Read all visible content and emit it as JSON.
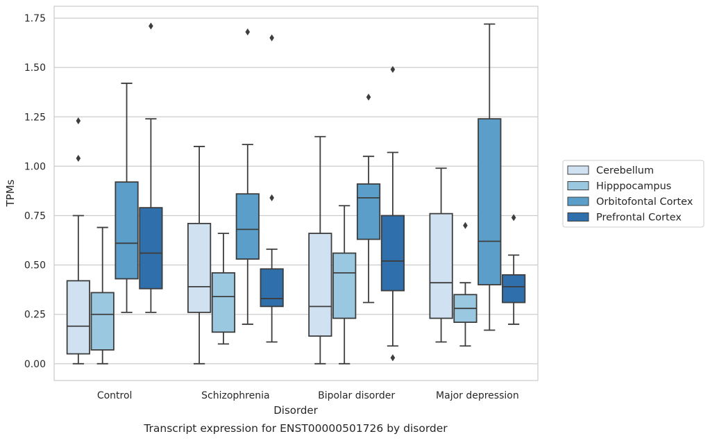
{
  "chart_data": {
    "type": "box",
    "title": "",
    "caption": "Transcript expression for ENST00000501726 by disorder",
    "xlabel": "Disorder",
    "ylabel": "TPMs",
    "ylim": [
      -0.085,
      1.81
    ],
    "yticks": [
      "0.00",
      "0.25",
      "0.50",
      "0.75",
      "1.00",
      "1.25",
      "1.50",
      "1.75"
    ],
    "ytick_values": [
      0,
      0.25,
      0.5,
      0.75,
      1.0,
      1.25,
      1.5,
      1.75
    ],
    "grid": true,
    "legend_position": "right",
    "categories": [
      "Control",
      "Schizophrenia",
      "Bipolar disorder",
      "Major depression"
    ],
    "series": [
      {
        "name": "Cerebellum",
        "color": "#d0e1f2",
        "boxes": [
          {
            "whislo": 0.0,
            "q1": 0.05,
            "med": 0.19,
            "q3": 0.42,
            "whishi": 0.75,
            "fliers": [
              1.04,
              1.23
            ]
          },
          {
            "whislo": 0.0,
            "q1": 0.26,
            "med": 0.39,
            "q3": 0.71,
            "whishi": 1.1,
            "fliers": []
          },
          {
            "whislo": 0.0,
            "q1": 0.14,
            "med": 0.29,
            "q3": 0.66,
            "whishi": 1.15,
            "fliers": []
          },
          {
            "whislo": 0.11,
            "q1": 0.23,
            "med": 0.41,
            "q3": 0.76,
            "whishi": 0.99,
            "fliers": []
          }
        ]
      },
      {
        "name": "Hipppocampus",
        "color": "#9ac8e0",
        "boxes": [
          {
            "whislo": 0.0,
            "q1": 0.07,
            "med": 0.25,
            "q3": 0.36,
            "whishi": 0.69,
            "fliers": []
          },
          {
            "whislo": 0.1,
            "q1": 0.16,
            "med": 0.34,
            "q3": 0.46,
            "whishi": 0.66,
            "fliers": []
          },
          {
            "whislo": 0.0,
            "q1": 0.23,
            "med": 0.46,
            "q3": 0.56,
            "whishi": 0.8,
            "fliers": []
          },
          {
            "whislo": 0.09,
            "q1": 0.21,
            "med": 0.28,
            "q3": 0.35,
            "whishi": 0.41,
            "fliers": [
              0.7
            ]
          }
        ]
      },
      {
        "name": "Orbitofontal Cortex",
        "color": "#5a9ec9",
        "boxes": [
          {
            "whislo": 0.26,
            "q1": 0.43,
            "med": 0.61,
            "q3": 0.92,
            "whishi": 1.42,
            "fliers": []
          },
          {
            "whislo": 0.2,
            "q1": 0.53,
            "med": 0.68,
            "q3": 0.86,
            "whishi": 1.11,
            "fliers": [
              1.68
            ]
          },
          {
            "whislo": 0.31,
            "q1": 0.63,
            "med": 0.84,
            "q3": 0.91,
            "whishi": 1.05,
            "fliers": [
              1.35
            ]
          },
          {
            "whislo": 0.17,
            "q1": 0.4,
            "med": 0.62,
            "q3": 1.24,
            "whishi": 1.72,
            "fliers": []
          }
        ]
      },
      {
        "name": "Prefrontal Cortex",
        "color": "#2e6fac",
        "boxes": [
          {
            "whislo": 0.26,
            "q1": 0.38,
            "med": 0.56,
            "q3": 0.79,
            "whishi": 1.24,
            "fliers": [
              1.71
            ]
          },
          {
            "whislo": 0.11,
            "q1": 0.29,
            "med": 0.33,
            "q3": 0.48,
            "whishi": 0.58,
            "fliers": [
              0.84,
              1.65
            ]
          },
          {
            "whislo": 0.09,
            "q1": 0.37,
            "med": 0.52,
            "q3": 0.75,
            "whishi": 1.07,
            "fliers": [
              0.03,
              1.49
            ]
          },
          {
            "whislo": 0.2,
            "q1": 0.31,
            "med": 0.39,
            "q3": 0.45,
            "whishi": 0.55,
            "fliers": [
              0.74
            ]
          }
        ]
      }
    ]
  }
}
